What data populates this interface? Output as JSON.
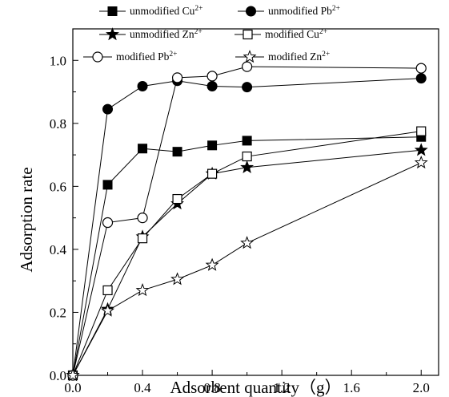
{
  "chart_data": {
    "type": "line",
    "xlabel": "Adsorbent quantity（g）",
    "ylabel": "Adsorption  rate",
    "xlim": [
      0.0,
      2.1
    ],
    "ylim": [
      0.0,
      1.1
    ],
    "xticks": [
      "0.0",
      "0.4",
      "0.8",
      "1.2",
      "1.6",
      "2.0"
    ],
    "yticks": [
      "0.0",
      "0.2",
      "0.4",
      "0.6",
      "0.8",
      "1.0"
    ],
    "grid": false,
    "legend_position": "top",
    "series": [
      {
        "name_base": "unmodified Cu",
        "ion_sup": "2+",
        "marker": "square-filled",
        "x": [
          0.0,
          0.2,
          0.4,
          0.6,
          0.8,
          1.0,
          2.0
        ],
        "y": [
          0.0,
          0.605,
          0.72,
          0.71,
          0.73,
          0.745,
          0.757
        ]
      },
      {
        "name_base": "unmodified Pb",
        "ion_sup": "2+",
        "marker": "circle-filled",
        "x": [
          0.0,
          0.2,
          0.4,
          0.6,
          0.8,
          1.0,
          2.0
        ],
        "y": [
          0.0,
          0.845,
          0.918,
          0.935,
          0.918,
          0.915,
          0.943
        ]
      },
      {
        "name_base": "unmodified Zn",
        "ion_sup": "2+",
        "marker": "star-filled",
        "x": [
          0.0,
          0.2,
          0.4,
          0.6,
          0.8,
          1.0,
          2.0
        ],
        "y": [
          0.0,
          0.21,
          0.44,
          0.545,
          0.64,
          0.66,
          0.715
        ]
      },
      {
        "name_base": "modified Cu",
        "ion_sup": "2+",
        "marker": "square-open",
        "x": [
          0.0,
          0.2,
          0.4,
          0.6,
          0.8,
          1.0,
          2.0
        ],
        "y": [
          0.0,
          0.27,
          0.435,
          0.56,
          0.64,
          0.695,
          0.775
        ]
      },
      {
        "name_base": "modified Pb",
        "ion_sup": "2+",
        "marker": "circle-open",
        "x": [
          0.0,
          0.2,
          0.4,
          0.6,
          0.8,
          1.0,
          2.0
        ],
        "y": [
          0.0,
          0.485,
          0.5,
          0.945,
          0.95,
          0.98,
          0.975
        ]
      },
      {
        "name_base": "modified Zn",
        "ion_sup": "2+",
        "marker": "star-open",
        "x": [
          0.0,
          0.2,
          0.4,
          0.6,
          0.8,
          1.0,
          2.0
        ],
        "y": [
          0.0,
          0.205,
          0.27,
          0.305,
          0.35,
          0.42,
          0.675
        ]
      }
    ]
  }
}
